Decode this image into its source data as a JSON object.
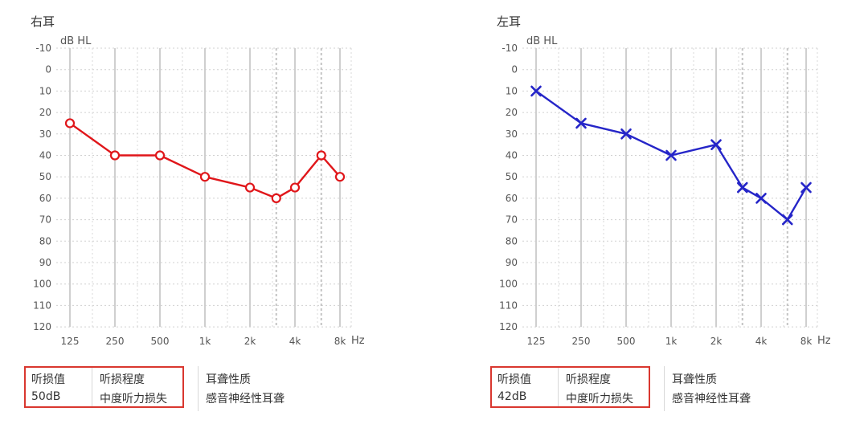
{
  "panels": [
    {
      "ear_label": "右耳",
      "y_unit": "dB HL",
      "x_unit": "Hz",
      "info": {
        "col1_label": "听损值",
        "col1_value": "50dB",
        "col2_label": "听损程度",
        "col2_value": "中度听力损失",
        "col3_label": "耳聋性质",
        "col3_value": "感音神经性耳聋"
      },
      "colors": {
        "line": "#e0161a"
      },
      "marker": "circle"
    },
    {
      "ear_label": "左耳",
      "y_unit": "dB HL",
      "x_unit": "Hz",
      "info": {
        "col1_label": "听损值",
        "col1_value": "42dB",
        "col2_label": "听损程度",
        "col2_value": "中度听力损失",
        "col3_label": "耳聋性质",
        "col3_value": "感音神经性耳聋"
      },
      "colors": {
        "line": "#2525c8"
      },
      "marker": "x"
    }
  ],
  "chart_data": [
    {
      "type": "line",
      "title": "右耳",
      "xlabel": "Hz",
      "ylabel": "dB HL",
      "x_scale": "log2",
      "x_ticks": [
        125,
        250,
        500,
        1000,
        2000,
        4000,
        8000
      ],
      "x_tick_labels": [
        "125",
        "250",
        "500",
        "1k",
        "2k",
        "4k",
        "8k"
      ],
      "y_ticks": [
        -10,
        0,
        10,
        20,
        30,
        40,
        50,
        60,
        70,
        80,
        90,
        100,
        110,
        120
      ],
      "y_tick_labels": [
        "-10",
        "0",
        "10",
        "20",
        "30",
        "40",
        "50",
        "60",
        "70",
        "80",
        "90",
        "100",
        "110",
        "120"
      ],
      "ylim": [
        -10,
        120
      ],
      "y_inverted": true,
      "grid": true,
      "series": [
        {
          "x": [
            125,
            250,
            500,
            1000,
            2000,
            3000,
            4000,
            6000,
            8000
          ],
          "y": [
            25,
            40,
            40,
            50,
            55,
            60,
            55,
            40,
            50
          ]
        }
      ]
    },
    {
      "type": "line",
      "title": "左耳",
      "xlabel": "Hz",
      "ylabel": "dB HL",
      "x_scale": "log2",
      "x_ticks": [
        125,
        250,
        500,
        1000,
        2000,
        4000,
        8000
      ],
      "x_tick_labels": [
        "125",
        "250",
        "500",
        "1k",
        "2k",
        "4k",
        "8k"
      ],
      "y_ticks": [
        -10,
        0,
        10,
        20,
        30,
        40,
        50,
        60,
        70,
        80,
        90,
        100,
        110,
        120
      ],
      "y_tick_labels": [
        "-10",
        "0",
        "10",
        "20",
        "30",
        "40",
        "50",
        "60",
        "70",
        "80",
        "90",
        "100",
        "110",
        "120"
      ],
      "ylim": [
        -10,
        120
      ],
      "y_inverted": true,
      "grid": true,
      "series": [
        {
          "x": [
            125,
            250,
            500,
            1000,
            2000,
            3000,
            4000,
            6000,
            8000
          ],
          "y": [
            10,
            25,
            30,
            40,
            35,
            55,
            60,
            70,
            55
          ]
        }
      ]
    }
  ]
}
